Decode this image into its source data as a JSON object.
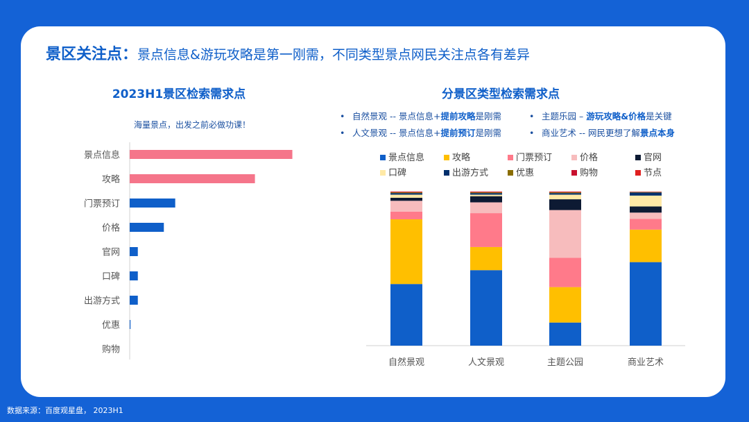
{
  "page": {
    "title": "景区关注点：",
    "subtitle": "景点信息&游玩攻略是第一刚需，不同类型景点网民关注点各有差异",
    "source": "数据来源：百度观星盘， 2023H1"
  },
  "left_chart": {
    "title": "2023H1景区检索需求点",
    "annotation": "海量景点，出发之前必做功课！"
  },
  "right_chart": {
    "title": "分景区类型检索需求点",
    "bullets": [
      {
        "pre": "自然景观 -- 景点信息+",
        "bold": "提前攻略",
        "post": "是刚需"
      },
      {
        "pre": "人文景观 -- 景点信息+",
        "bold": "提前预订",
        "post": "是刚需"
      },
      {
        "pre": "主题乐园 – ",
        "bold": "游玩攻略&价格",
        "post": "是关键"
      },
      {
        "pre": "商业艺术 -- 网民更想了解",
        "bold": "景点本身",
        "post": ""
      }
    ]
  },
  "colors": {
    "pink_bar": "#f5758a",
    "blue_bar": "#0f5fc9"
  },
  "chart_data": [
    {
      "type": "bar",
      "orientation": "horizontal",
      "title": "2023H1景区检索需求点",
      "categories": [
        "景点信息",
        "攻略",
        "门票预订",
        "价格",
        "官网",
        "口碑",
        "出游方式",
        "优惠",
        "购物"
      ],
      "values": [
        100,
        77,
        28,
        21,
        5,
        5,
        5,
        0.5,
        0
      ],
      "xlim": [
        0,
        110
      ],
      "bar_colors": [
        "#f5758a",
        "#f5758a",
        "#0f5fc9",
        "#0f5fc9",
        "#0f5fc9",
        "#0f5fc9",
        "#0f5fc9",
        "#0f5fc9",
        "#0f5fc9"
      ],
      "grid": false
    },
    {
      "type": "bar",
      "stacked": true,
      "title": "分景区类型检索需求点",
      "categories": [
        "自然景观",
        "人文景观",
        "主题公园",
        "商业艺术"
      ],
      "ylim": [
        0,
        100
      ],
      "grid": false,
      "legend_position": "top",
      "series": [
        {
          "name": "景点信息",
          "color": "#0f5fc9",
          "values": [
            40,
            49,
            15,
            54
          ]
        },
        {
          "name": "攻略",
          "color": "#ffbf00",
          "values": [
            42,
            15,
            23,
            21
          ]
        },
        {
          "name": "门票预订",
          "color": "#ff7a8a",
          "values": [
            5,
            22,
            19,
            7
          ]
        },
        {
          "name": "价格",
          "color": "#f7bcbd",
          "values": [
            7,
            7,
            31,
            4
          ]
        },
        {
          "name": "官网",
          "color": "#0d1a33",
          "values": [
            2,
            4,
            7,
            4
          ]
        },
        {
          "name": "口碑",
          "color": "#ffe9a6",
          "values": [
            2,
            1,
            3,
            7
          ]
        },
        {
          "name": "出游方式",
          "color": "#002f6c",
          "values": [
            1,
            1,
            1,
            2
          ]
        },
        {
          "name": "优惠",
          "color": "#8a6d00",
          "values": [
            0.5,
            0.5,
            0.5,
            0.3
          ]
        },
        {
          "name": "购物",
          "color": "#c8102e",
          "values": [
            0.3,
            0.3,
            0.3,
            0.2
          ]
        },
        {
          "name": "节点",
          "color": "#e02020",
          "values": [
            0.2,
            0.2,
            0.2,
            0.1
          ]
        }
      ]
    }
  ]
}
